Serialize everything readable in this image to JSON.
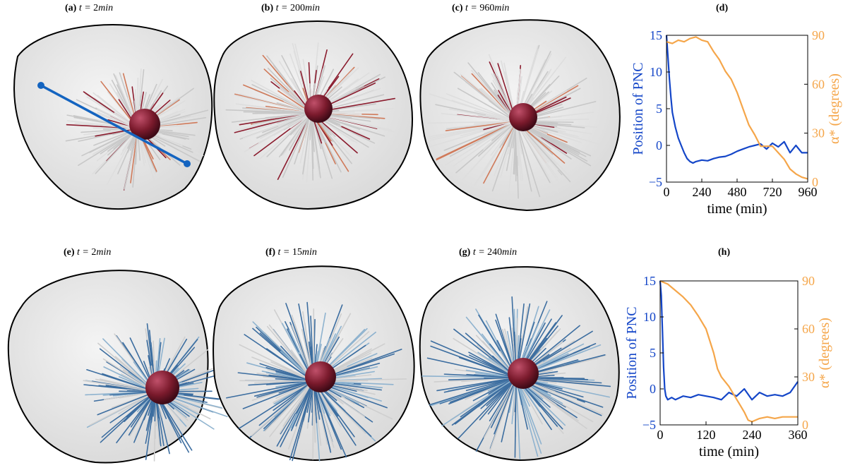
{
  "figure": {
    "panels": [
      {
        "id": "a",
        "letter": "(a)",
        "t_prefix": "t = ",
        "t_value": "2",
        "t_unit": "min",
        "mt_color": "#8b1c2e",
        "fiber": "red",
        "show_axis_line": true
      },
      {
        "id": "b",
        "letter": "(b)",
        "t_prefix": "t = ",
        "t_value": "200",
        "t_unit": "min",
        "mt_color": "#8b1c2e",
        "fiber": "red",
        "show_axis_line": false
      },
      {
        "id": "c",
        "letter": "(c)",
        "t_prefix": "t = ",
        "t_value": "960",
        "t_unit": "min",
        "mt_color": "#8b1c2e",
        "fiber": "red",
        "show_axis_line": false
      },
      {
        "id": "e",
        "letter": "(e)",
        "t_prefix": "t = ",
        "t_value": "2",
        "t_unit": "min",
        "mt_color": "#3d6ea0",
        "fiber": "blue",
        "show_axis_line": false
      },
      {
        "id": "f",
        "letter": "(f)",
        "t_prefix": "t = ",
        "t_value": "15",
        "t_unit": "min",
        "mt_color": "#3d6ea0",
        "fiber": "blue",
        "show_axis_line": false
      },
      {
        "id": "g",
        "letter": "(g)",
        "t_prefix": "t = ",
        "t_value": "240",
        "t_unit": "min",
        "mt_color": "#3d6ea0",
        "fiber": "blue",
        "show_axis_line": false
      }
    ],
    "colors": {
      "position_series": "#1446c8",
      "angle_series": "#f5a64a",
      "nucleus": "#7a1a2c",
      "cell_outline": "#000000",
      "axis_line": "#1464c0"
    }
  },
  "chart_data": [
    {
      "id": "d",
      "label": "(d)",
      "type": "line",
      "xlabel": "time (min)",
      "ylabel_left": "Position of PNC",
      "ylabel_right": "α* (degrees)",
      "xlim": [
        0,
        960
      ],
      "ylim_left": [
        -5,
        15
      ],
      "ylim_right": [
        0,
        90
      ],
      "xticks": [
        0,
        240,
        480,
        720,
        960
      ],
      "yticks_left": [
        -5,
        0,
        5,
        10,
        15
      ],
      "yticks_right": [
        0,
        30,
        60,
        90
      ],
      "series": [
        {
          "name": "Position of PNC",
          "axis": "left",
          "color": "#1446c8",
          "x": [
            0,
            10,
            20,
            30,
            40,
            60,
            80,
            100,
            120,
            140,
            160,
            180,
            200,
            240,
            280,
            320,
            360,
            400,
            440,
            480,
            520,
            560,
            600,
            640,
            680,
            720,
            760,
            800,
            840,
            880,
            920,
            960
          ],
          "y": [
            15,
            12,
            9,
            6.5,
            4.5,
            2.5,
            1,
            0,
            -1,
            -1.8,
            -2.2,
            -2.4,
            -2.2,
            -2,
            -2.1,
            -1.8,
            -1.6,
            -1.5,
            -1.2,
            -0.8,
            -0.5,
            -0.2,
            0,
            0.2,
            -0.5,
            0.3,
            -0.2,
            0.5,
            -1,
            0,
            -1,
            -1
          ]
        },
        {
          "name": "α*",
          "axis": "right",
          "color": "#f5a64a",
          "x": [
            0,
            40,
            80,
            120,
            160,
            200,
            240,
            280,
            320,
            360,
            400,
            440,
            480,
            520,
            560,
            600,
            640,
            680,
            720,
            760,
            800,
            840,
            880,
            920,
            960
          ],
          "y": [
            86,
            85,
            87,
            86,
            88,
            89,
            87,
            86,
            80,
            75,
            68,
            63,
            55,
            45,
            35,
            29,
            22,
            22,
            22,
            18,
            14,
            8,
            5,
            3,
            2
          ]
        }
      ]
    },
    {
      "id": "h",
      "label": "(h)",
      "type": "line",
      "xlabel": "time (min)",
      "ylabel_left": "Position of PNC",
      "ylabel_right": "α* (degrees)",
      "xlim": [
        0,
        360
      ],
      "ylim_left": [
        -5,
        15
      ],
      "ylim_right": [
        0,
        90
      ],
      "xticks": [
        0,
        120,
        240,
        360
      ],
      "yticks_left": [
        -5,
        0,
        5,
        10,
        15
      ],
      "yticks_right": [
        0,
        30,
        60,
        90
      ],
      "series": [
        {
          "name": "Position of PNC",
          "axis": "left",
          "color": "#1446c8",
          "x": [
            0,
            3,
            6,
            9,
            12,
            15,
            20,
            30,
            40,
            60,
            80,
            100,
            120,
            140,
            160,
            180,
            200,
            220,
            240,
            260,
            280,
            300,
            320,
            340,
            360
          ],
          "y": [
            15,
            13,
            8,
            3,
            0,
            -1,
            -1.5,
            -1.2,
            -1.5,
            -1,
            -1.2,
            -0.8,
            -1,
            -1.2,
            -1.5,
            -0.5,
            -1,
            0,
            -1.5,
            -0.5,
            -1,
            -0.8,
            -1,
            -0.5,
            1
          ]
        },
        {
          "name": "α*",
          "axis": "right",
          "color": "#f5a64a",
          "x": [
            0,
            10,
            20,
            30,
            40,
            60,
            80,
            100,
            120,
            140,
            150,
            160,
            170,
            180,
            190,
            200,
            210,
            220,
            230,
            240,
            260,
            280,
            300,
            320,
            340,
            360
          ],
          "y": [
            90,
            89,
            88,
            86,
            84,
            80,
            75,
            68,
            60,
            45,
            35,
            30,
            27,
            24,
            20,
            16,
            12,
            8,
            3,
            2,
            4,
            5,
            4,
            5,
            5,
            5
          ]
        }
      ]
    }
  ]
}
